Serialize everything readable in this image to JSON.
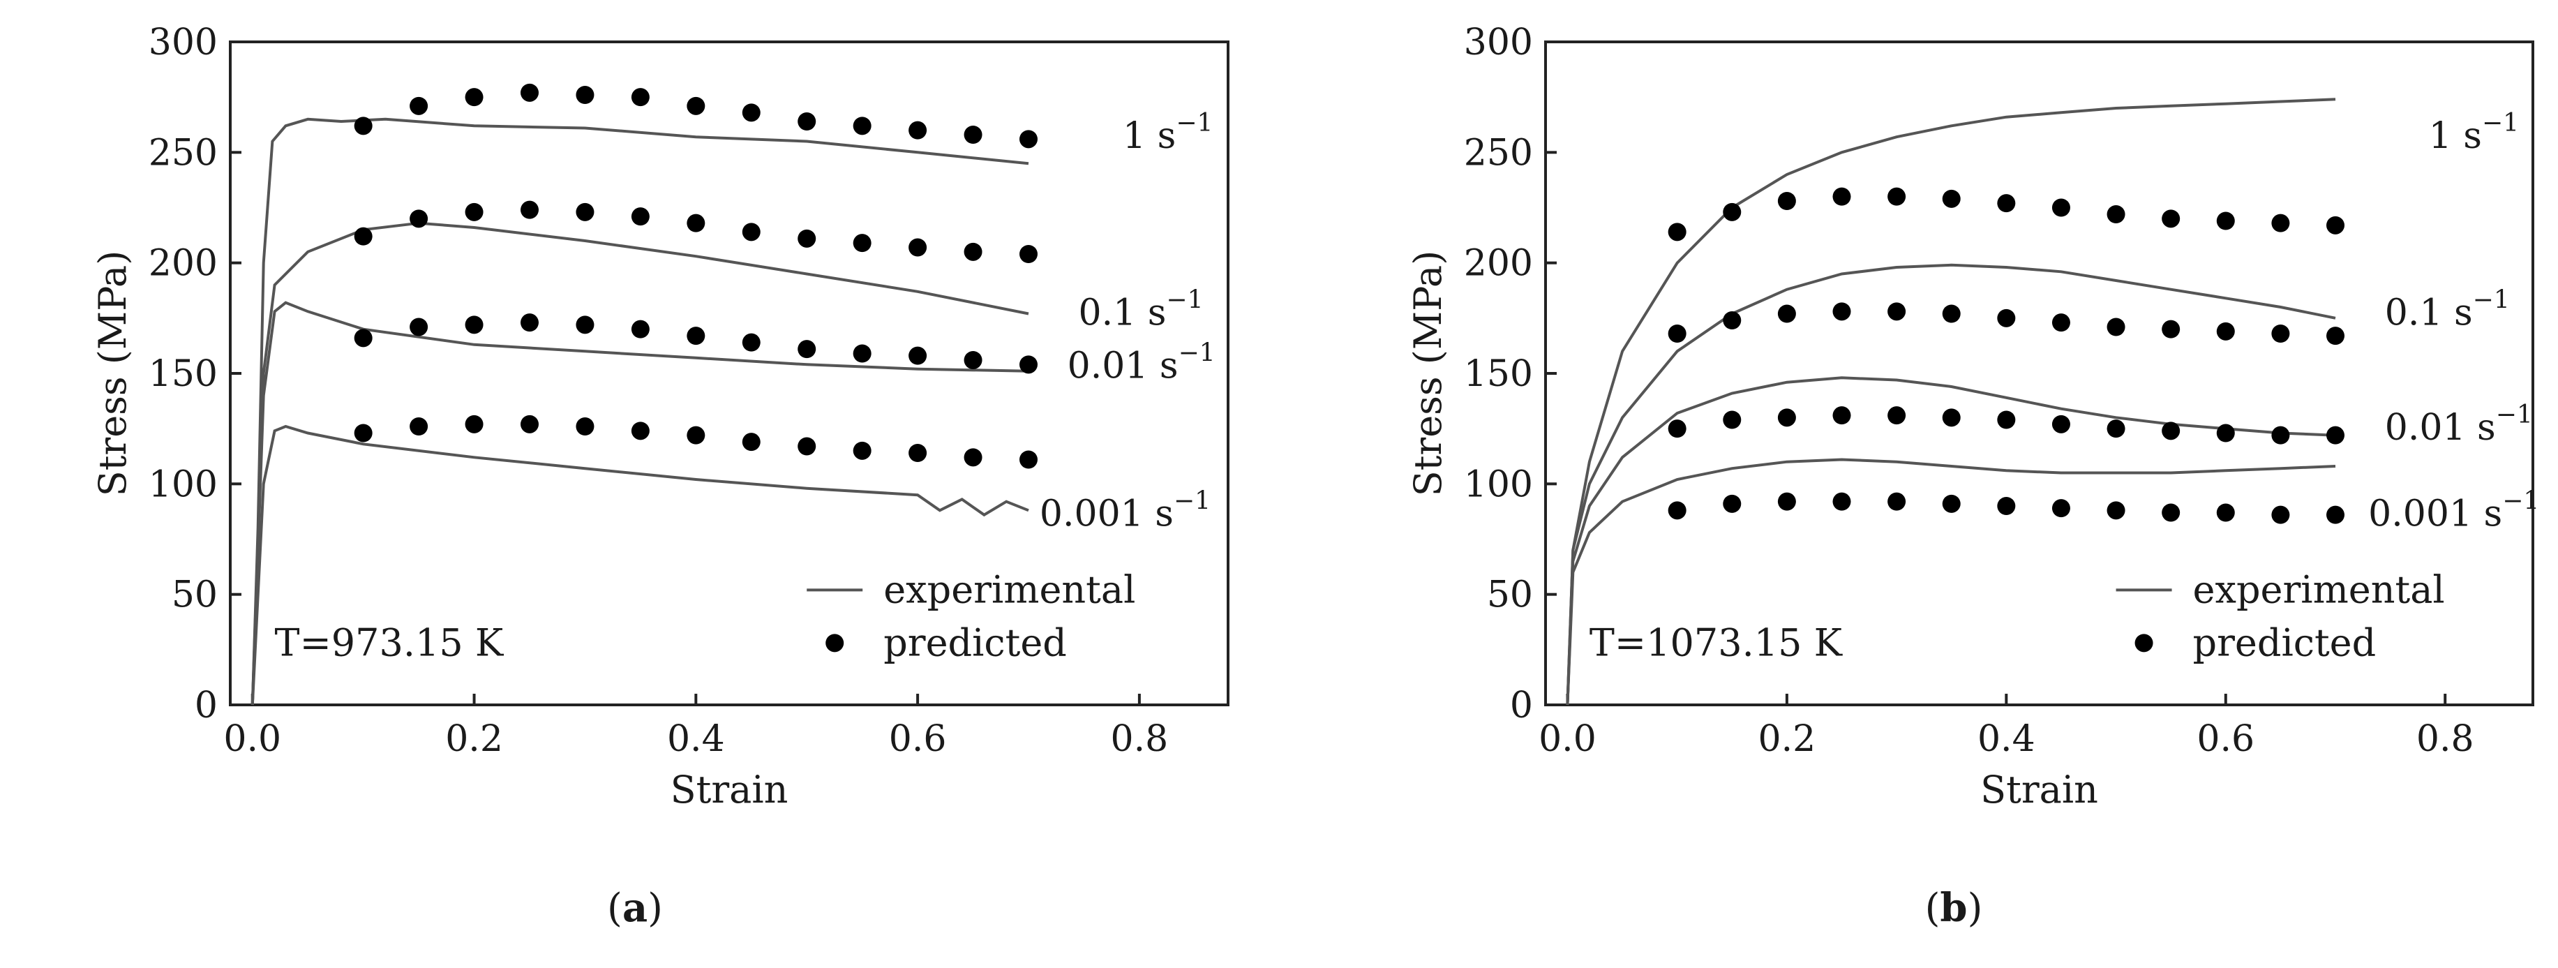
{
  "chart_data": [
    {
      "id": "a",
      "type": "line",
      "caption_letter": "a",
      "xlabel": "Strain",
      "ylabel": "Stress (MPa)",
      "xlim": [
        -0.02,
        0.88
      ],
      "ylim": [
        0,
        300
      ],
      "xticks": [
        "0.0",
        "0.2",
        "0.4",
        "0.6",
        "0.8"
      ],
      "xtick_values": [
        0,
        0.2,
        0.4,
        0.6,
        0.8
      ],
      "yticks": [
        "0",
        "50",
        "100",
        "150",
        "200",
        "250",
        "300"
      ],
      "ytick_values": [
        0,
        50,
        100,
        150,
        200,
        250,
        300
      ],
      "temperature_label": "T=973.15 K",
      "legend": {
        "experimental": "experimental",
        "predicted": "predicted",
        "position": "bottom-right"
      },
      "rate_labels": [
        {
          "text": "1 s",
          "exp": "−1",
          "x": 0.785,
          "y": 252
        },
        {
          "text": "0.1 s",
          "exp": "−1",
          "x": 0.745,
          "y": 172
        },
        {
          "text": "0.01 s",
          "exp": "−1",
          "x": 0.735,
          "y": 148
        },
        {
          "text": "0.001 s",
          "exp": "−1",
          "x": 0.71,
          "y": 81
        }
      ],
      "series": [
        {
          "name": "1 s-1",
          "experimental": [
            [
              0,
              0
            ],
            [
              0.005,
              80
            ],
            [
              0.01,
              200
            ],
            [
              0.018,
              255
            ],
            [
              0.03,
              262
            ],
            [
              0.05,
              265
            ],
            [
              0.08,
              264
            ],
            [
              0.12,
              265
            ],
            [
              0.2,
              262
            ],
            [
              0.3,
              261
            ],
            [
              0.4,
              257
            ],
            [
              0.5,
              255
            ],
            [
              0.6,
              250
            ],
            [
              0.7,
              245
            ]
          ],
          "predicted": [
            [
              0.1,
              262
            ],
            [
              0.15,
              271
            ],
            [
              0.2,
              275
            ],
            [
              0.25,
              277
            ],
            [
              0.3,
              276
            ],
            [
              0.35,
              275
            ],
            [
              0.4,
              271
            ],
            [
              0.45,
              268
            ],
            [
              0.5,
              264
            ],
            [
              0.55,
              262
            ],
            [
              0.6,
              260
            ],
            [
              0.65,
              258
            ],
            [
              0.7,
              256
            ]
          ]
        },
        {
          "name": "0.1 s-1",
          "experimental": [
            [
              0,
              0
            ],
            [
              0.01,
              150
            ],
            [
              0.02,
              190
            ],
            [
              0.05,
              205
            ],
            [
              0.1,
              215
            ],
            [
              0.15,
              218
            ],
            [
              0.2,
              216
            ],
            [
              0.3,
              210
            ],
            [
              0.4,
              203
            ],
            [
              0.5,
              195
            ],
            [
              0.6,
              187
            ],
            [
              0.7,
              177
            ]
          ],
          "predicted": [
            [
              0.1,
              212
            ],
            [
              0.15,
              220
            ],
            [
              0.2,
              223
            ],
            [
              0.25,
              224
            ],
            [
              0.3,
              223
            ],
            [
              0.35,
              221
            ],
            [
              0.4,
              218
            ],
            [
              0.45,
              214
            ],
            [
              0.5,
              211
            ],
            [
              0.55,
              209
            ],
            [
              0.6,
              207
            ],
            [
              0.65,
              205
            ],
            [
              0.7,
              204
            ]
          ]
        },
        {
          "name": "0.01 s-1",
          "experimental": [
            [
              0,
              0
            ],
            [
              0.01,
              140
            ],
            [
              0.02,
              178
            ],
            [
              0.03,
              182
            ],
            [
              0.05,
              178
            ],
            [
              0.1,
              170
            ],
            [
              0.2,
              163
            ],
            [
              0.3,
              160
            ],
            [
              0.4,
              157
            ],
            [
              0.5,
              154
            ],
            [
              0.6,
              152
            ],
            [
              0.7,
              151
            ]
          ],
          "predicted": [
            [
              0.1,
              166
            ],
            [
              0.15,
              171
            ],
            [
              0.2,
              172
            ],
            [
              0.25,
              173
            ],
            [
              0.3,
              172
            ],
            [
              0.35,
              170
            ],
            [
              0.4,
              167
            ],
            [
              0.45,
              164
            ],
            [
              0.5,
              161
            ],
            [
              0.55,
              159
            ],
            [
              0.6,
              158
            ],
            [
              0.65,
              156
            ],
            [
              0.7,
              154
            ]
          ]
        },
        {
          "name": "0.001 s-1",
          "experimental": [
            [
              0,
              0
            ],
            [
              0.01,
              100
            ],
            [
              0.02,
              124
            ],
            [
              0.03,
              126
            ],
            [
              0.05,
              123
            ],
            [
              0.1,
              118
            ],
            [
              0.2,
              112
            ],
            [
              0.3,
              107
            ],
            [
              0.4,
              102
            ],
            [
              0.5,
              98
            ],
            [
              0.6,
              95
            ],
            [
              0.62,
              88
            ],
            [
              0.64,
              93
            ],
            [
              0.66,
              86
            ],
            [
              0.68,
              92
            ],
            [
              0.7,
              88
            ]
          ],
          "predicted": [
            [
              0.1,
              123
            ],
            [
              0.15,
              126
            ],
            [
              0.2,
              127
            ],
            [
              0.25,
              127
            ],
            [
              0.3,
              126
            ],
            [
              0.35,
              124
            ],
            [
              0.4,
              122
            ],
            [
              0.45,
              119
            ],
            [
              0.5,
              117
            ],
            [
              0.55,
              115
            ],
            [
              0.6,
              114
            ],
            [
              0.65,
              112
            ],
            [
              0.7,
              111
            ]
          ]
        }
      ]
    },
    {
      "id": "b",
      "type": "line",
      "caption_letter": "b",
      "xlabel": "Strain",
      "ylabel": "Stress (MPa)",
      "xlim": [
        -0.02,
        0.88
      ],
      "ylim": [
        0,
        300
      ],
      "xticks": [
        "0.0",
        "0.2",
        "0.4",
        "0.6",
        "0.8"
      ],
      "xtick_values": [
        0,
        0.2,
        0.4,
        0.6,
        0.8
      ],
      "yticks": [
        "0",
        "50",
        "100",
        "150",
        "200",
        "250",
        "300"
      ],
      "ytick_values": [
        0,
        50,
        100,
        150,
        200,
        250,
        300
      ],
      "temperature_label": "T=1073.15 K",
      "legend": {
        "experimental": "experimental",
        "predicted": "predicted",
        "position": "bottom-right"
      },
      "rate_labels": [
        {
          "text": "1 s",
          "exp": "−1",
          "x": 0.785,
          "y": 252
        },
        {
          "text": "0.1 s",
          "exp": "−1",
          "x": 0.745,
          "y": 172
        },
        {
          "text": "0.01 s",
          "exp": "−1",
          "x": 0.745,
          "y": 120
        },
        {
          "text": "0.001 s",
          "exp": "−1",
          "x": 0.73,
          "y": 81
        }
      ],
      "series": [
        {
          "name": "1 s-1",
          "experimental": [
            [
              0,
              0
            ],
            [
              0.005,
              70
            ],
            [
              0.02,
              110
            ],
            [
              0.05,
              160
            ],
            [
              0.1,
              200
            ],
            [
              0.15,
              225
            ],
            [
              0.2,
              240
            ],
            [
              0.25,
              250
            ],
            [
              0.3,
              257
            ],
            [
              0.35,
              262
            ],
            [
              0.4,
              266
            ],
            [
              0.45,
              268
            ],
            [
              0.5,
              270
            ],
            [
              0.55,
              271
            ],
            [
              0.6,
              272
            ],
            [
              0.65,
              273
            ],
            [
              0.7,
              274
            ]
          ],
          "predicted": [
            [
              0.1,
              214
            ],
            [
              0.15,
              223
            ],
            [
              0.2,
              228
            ],
            [
              0.25,
              230
            ],
            [
              0.3,
              230
            ],
            [
              0.35,
              229
            ],
            [
              0.4,
              227
            ],
            [
              0.45,
              225
            ],
            [
              0.5,
              222
            ],
            [
              0.55,
              220
            ],
            [
              0.6,
              219
            ],
            [
              0.65,
              218
            ],
            [
              0.7,
              217
            ]
          ]
        },
        {
          "name": "0.1 s-1",
          "experimental": [
            [
              0,
              0
            ],
            [
              0.005,
              70
            ],
            [
              0.02,
              100
            ],
            [
              0.05,
              130
            ],
            [
              0.1,
              160
            ],
            [
              0.15,
              177
            ],
            [
              0.2,
              188
            ],
            [
              0.25,
              195
            ],
            [
              0.3,
              198
            ],
            [
              0.35,
              199
            ],
            [
              0.4,
              198
            ],
            [
              0.45,
              196
            ],
            [
              0.5,
              192
            ],
            [
              0.55,
              188
            ],
            [
              0.6,
              184
            ],
            [
              0.65,
              180
            ],
            [
              0.7,
              175
            ]
          ],
          "predicted": [
            [
              0.1,
              168
            ],
            [
              0.15,
              174
            ],
            [
              0.2,
              177
            ],
            [
              0.25,
              178
            ],
            [
              0.3,
              178
            ],
            [
              0.35,
              177
            ],
            [
              0.4,
              175
            ],
            [
              0.45,
              173
            ],
            [
              0.5,
              171
            ],
            [
              0.55,
              170
            ],
            [
              0.6,
              169
            ],
            [
              0.65,
              168
            ],
            [
              0.7,
              167
            ]
          ]
        },
        {
          "name": "0.01 s-1",
          "experimental": [
            [
              0,
              0
            ],
            [
              0.005,
              65
            ],
            [
              0.02,
              90
            ],
            [
              0.05,
              112
            ],
            [
              0.1,
              132
            ],
            [
              0.15,
              141
            ],
            [
              0.2,
              146
            ],
            [
              0.25,
              148
            ],
            [
              0.3,
              147
            ],
            [
              0.35,
              144
            ],
            [
              0.4,
              139
            ],
            [
              0.45,
              134
            ],
            [
              0.5,
              130
            ],
            [
              0.55,
              127
            ],
            [
              0.6,
              125
            ],
            [
              0.65,
              123
            ],
            [
              0.7,
              122
            ]
          ],
          "predicted": [
            [
              0.1,
              125
            ],
            [
              0.15,
              129
            ],
            [
              0.2,
              130
            ],
            [
              0.25,
              131
            ],
            [
              0.3,
              131
            ],
            [
              0.35,
              130
            ],
            [
              0.4,
              129
            ],
            [
              0.45,
              127
            ],
            [
              0.5,
              125
            ],
            [
              0.55,
              124
            ],
            [
              0.6,
              123
            ],
            [
              0.65,
              122
            ],
            [
              0.7,
              122
            ]
          ]
        },
        {
          "name": "0.001 s-1",
          "experimental": [
            [
              0,
              0
            ],
            [
              0.005,
              60
            ],
            [
              0.02,
              78
            ],
            [
              0.05,
              92
            ],
            [
              0.1,
              102
            ],
            [
              0.15,
              107
            ],
            [
              0.2,
              110
            ],
            [
              0.25,
              111
            ],
            [
              0.3,
              110
            ],
            [
              0.35,
              108
            ],
            [
              0.4,
              106
            ],
            [
              0.45,
              105
            ],
            [
              0.5,
              105
            ],
            [
              0.55,
              105
            ],
            [
              0.6,
              106
            ],
            [
              0.65,
              107
            ],
            [
              0.7,
              108
            ]
          ],
          "predicted": [
            [
              0.1,
              88
            ],
            [
              0.15,
              91
            ],
            [
              0.2,
              92
            ],
            [
              0.25,
              92
            ],
            [
              0.3,
              92
            ],
            [
              0.35,
              91
            ],
            [
              0.4,
              90
            ],
            [
              0.45,
              89
            ],
            [
              0.5,
              88
            ],
            [
              0.55,
              87
            ],
            [
              0.6,
              87
            ],
            [
              0.65,
              86
            ],
            [
              0.7,
              86
            ]
          ]
        }
      ]
    }
  ]
}
